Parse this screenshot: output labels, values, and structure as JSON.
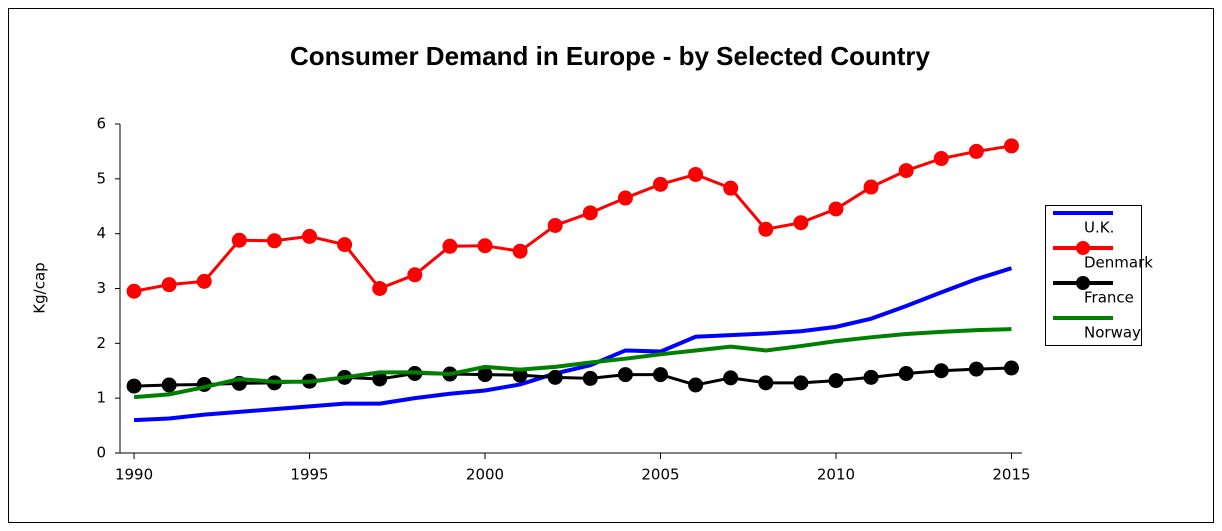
{
  "chart_data": {
    "type": "line",
    "title": "Consumer Demand in Europe - by Selected Country",
    "y_label": "Kg/cap",
    "x": [
      1990,
      1991,
      1992,
      1993,
      1994,
      1995,
      1996,
      1997,
      1998,
      1999,
      2000,
      2001,
      2002,
      2003,
      2004,
      2005,
      2006,
      2007,
      2008,
      2009,
      2010,
      2011,
      2012,
      2013,
      2014,
      2015
    ],
    "xlim": [
      1989.6,
      2015.3
    ],
    "xticks": [
      1990,
      1995,
      2000,
      2005,
      2010,
      2015
    ],
    "ylim": [
      0,
      6
    ],
    "yticks": [
      0,
      1,
      2,
      3,
      4,
      5,
      6
    ],
    "grid": false,
    "legend": "right",
    "series": [
      {
        "name": "U.K.",
        "color": "#0000ff",
        "values": [
          0.6,
          0.63,
          0.7,
          0.75,
          0.8,
          0.85,
          0.9,
          0.9,
          1.0,
          1.08,
          1.14,
          1.25,
          1.45,
          1.6,
          1.87,
          1.85,
          2.12,
          2.15,
          2.18,
          2.22,
          2.3,
          2.45,
          2.68,
          2.93,
          3.17,
          3.37
        ]
      },
      {
        "name": "Denmark",
        "color": "#ff0000",
        "marker": "circle",
        "values": [
          2.95,
          3.07,
          3.13,
          3.88,
          3.87,
          3.95,
          3.8,
          3.0,
          3.25,
          3.77,
          3.78,
          3.68,
          4.15,
          4.38,
          4.65,
          4.9,
          5.08,
          4.83,
          4.08,
          4.2,
          4.45,
          4.85,
          5.15,
          5.37,
          5.5,
          5.6
        ]
      },
      {
        "name": "France",
        "color": "#000000",
        "marker": "circle",
        "values": [
          1.22,
          1.24,
          1.25,
          1.27,
          1.28,
          1.31,
          1.38,
          1.35,
          1.45,
          1.44,
          1.43,
          1.42,
          1.38,
          1.36,
          1.43,
          1.43,
          1.24,
          1.37,
          1.28,
          1.28,
          1.32,
          1.38,
          1.45,
          1.5,
          1.53,
          1.55
        ]
      },
      {
        "name": "Norway",
        "color": "#008000",
        "values": [
          1.02,
          1.07,
          1.2,
          1.35,
          1.3,
          1.3,
          1.38,
          1.47,
          1.47,
          1.44,
          1.57,
          1.52,
          1.57,
          1.65,
          1.72,
          1.8,
          1.87,
          1.94,
          1.87,
          1.95,
          2.04,
          2.11,
          2.17,
          2.21,
          2.24,
          2.26
        ]
      }
    ]
  }
}
